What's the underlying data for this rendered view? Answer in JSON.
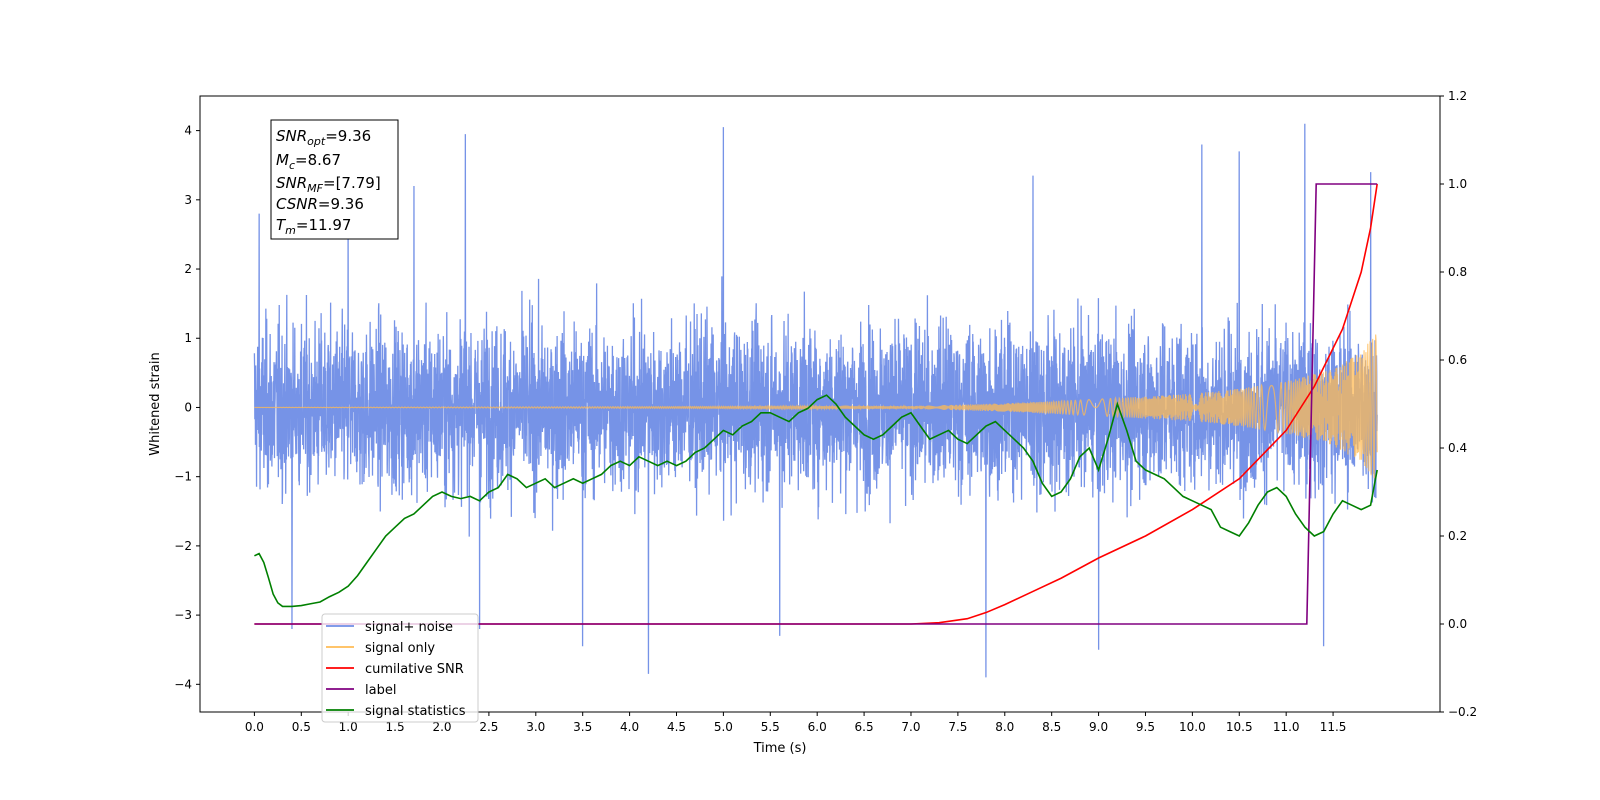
{
  "chart_data": {
    "type": "line",
    "xlabel": "Time (s)",
    "ylabel": "Whitened strain",
    "xlim": [
      -0.58,
      12.64
    ],
    "ylim": [
      -4.4,
      4.5
    ],
    "y2lim": [
      -0.2,
      1.2
    ],
    "xticks": [
      0.0,
      0.5,
      1.0,
      1.5,
      2.0,
      2.5,
      3.0,
      3.5,
      4.0,
      4.5,
      5.0,
      5.5,
      6.0,
      6.5,
      7.0,
      7.5,
      8.0,
      8.5,
      9.0,
      9.5,
      10.0,
      10.5,
      11.0,
      11.5
    ],
    "xtick_labels": [
      "0.0",
      "0.5",
      "1.0",
      "1.5",
      "2.0",
      "2.5",
      "3.0",
      "3.5",
      "4.0",
      "4.5",
      "5.0",
      "5.5",
      "6.0",
      "6.5",
      "7.0",
      "7.5",
      "8.0",
      "8.5",
      "9.0",
      "9.5",
      "10.0",
      "10.5",
      "11.0",
      "11.5"
    ],
    "yticks": [
      -4,
      -3,
      -2,
      -1,
      0,
      1,
      2,
      3,
      4
    ],
    "ytick_labels": [
      "−4",
      "−3",
      "−2",
      "−1",
      "0",
      "1",
      "2",
      "3",
      "4"
    ],
    "y2ticks": [
      -0.2,
      0.0,
      0.2,
      0.4,
      0.6,
      0.8,
      1.0,
      1.2
    ],
    "y2tick_labels": [
      "−0.2",
      "0.0",
      "0.2",
      "0.4",
      "0.6",
      "0.8",
      "1.0",
      "1.2"
    ],
    "legend_position": "lower-left",
    "annotation": {
      "lines": [
        {
          "base": "SNR",
          "sub": "opt",
          "rest": "=9.36"
        },
        {
          "base": "M",
          "sub": "c",
          "rest": "=8.67"
        },
        {
          "base": "SNR",
          "sub": "MF",
          "rest": "=[7.79]"
        },
        {
          "base": "CSNR",
          "sub": "",
          "rest": "=9.36"
        },
        {
          "base": "T",
          "sub": "m",
          "rest": "=11.97"
        }
      ]
    },
    "series": [
      {
        "name": "signal+ noise",
        "axis": "left",
        "color": "#6f8de6",
        "x_range": [
          0.0,
          11.97
        ],
        "noise_sigma": 0.95,
        "peak_values": [
          [
            0.05,
            2.8
          ],
          [
            0.4,
            -3.2
          ],
          [
            1.0,
            2.9
          ],
          [
            1.7,
            3.2
          ],
          [
            2.25,
            3.95
          ],
          [
            2.4,
            -3.2
          ],
          [
            3.5,
            -3.45
          ],
          [
            4.2,
            -3.85
          ],
          [
            5.0,
            4.05
          ],
          [
            5.6,
            -3.3
          ],
          [
            7.8,
            -3.9
          ],
          [
            8.3,
            3.35
          ],
          [
            9.0,
            -3.5
          ],
          [
            10.1,
            3.8
          ],
          [
            10.5,
            3.7
          ],
          [
            11.2,
            4.1
          ],
          [
            11.4,
            -3.45
          ],
          [
            11.9,
            3.4
          ]
        ]
      },
      {
        "name": "signal only",
        "axis": "left",
        "color": "#ffbb55",
        "x_range": [
          0.0,
          11.97
        ],
        "envelope": [
          [
            0.0,
            0.0
          ],
          [
            7.0,
            0.02
          ],
          [
            8.0,
            0.06
          ],
          [
            9.0,
            0.12
          ],
          [
            10.0,
            0.2
          ],
          [
            10.5,
            0.27
          ],
          [
            11.0,
            0.38
          ],
          [
            11.5,
            0.55
          ],
          [
            11.8,
            0.8
          ],
          [
            11.97,
            1.1
          ]
        ]
      },
      {
        "name": "cumilative SNR",
        "axis": "right",
        "color": "#ff0000",
        "x": [
          0.0,
          7.0,
          7.3,
          7.6,
          7.8,
          8.0,
          8.3,
          8.6,
          9.0,
          9.5,
          10.0,
          10.5,
          11.0,
          11.3,
          11.6,
          11.8,
          11.9,
          11.97
        ],
        "values": [
          0.0,
          0.0,
          0.003,
          0.012,
          0.026,
          0.044,
          0.074,
          0.104,
          0.15,
          0.2,
          0.26,
          0.33,
          0.44,
          0.54,
          0.67,
          0.8,
          0.9,
          1.0
        ]
      },
      {
        "name": "label",
        "axis": "right",
        "color": "#800080",
        "x": [
          0.0,
          11.22,
          11.32,
          11.97
        ],
        "values": [
          0.0,
          0.0,
          1.0,
          1.0
        ]
      },
      {
        "name": "signal statistics",
        "axis": "right",
        "color": "#008000",
        "x": [
          0.0,
          0.05,
          0.1,
          0.15,
          0.2,
          0.25,
          0.3,
          0.4,
          0.5,
          0.6,
          0.7,
          0.8,
          0.9,
          1.0,
          1.1,
          1.2,
          1.3,
          1.4,
          1.5,
          1.6,
          1.7,
          1.8,
          1.9,
          2.0,
          2.1,
          2.2,
          2.3,
          2.4,
          2.5,
          2.6,
          2.7,
          2.8,
          2.9,
          3.0,
          3.1,
          3.2,
          3.3,
          3.4,
          3.5,
          3.6,
          3.7,
          3.8,
          3.9,
          4.0,
          4.1,
          4.2,
          4.3,
          4.4,
          4.5,
          4.6,
          4.7,
          4.8,
          4.9,
          5.0,
          5.1,
          5.2,
          5.3,
          5.4,
          5.5,
          5.6,
          5.7,
          5.8,
          5.9,
          6.0,
          6.1,
          6.2,
          6.3,
          6.4,
          6.5,
          6.6,
          6.7,
          6.8,
          6.9,
          7.0,
          7.1,
          7.2,
          7.3,
          7.4,
          7.5,
          7.6,
          7.7,
          7.8,
          7.9,
          8.0,
          8.1,
          8.2,
          8.3,
          8.4,
          8.5,
          8.6,
          8.7,
          8.8,
          8.9,
          9.0,
          9.1,
          9.2,
          9.3,
          9.4,
          9.5,
          9.6,
          9.7,
          9.8,
          9.9,
          10.0,
          10.1,
          10.2,
          10.3,
          10.4,
          10.5,
          10.6,
          10.7,
          10.8,
          10.9,
          11.0,
          11.1,
          11.2,
          11.3,
          11.4,
          11.5,
          11.6,
          11.7,
          11.8,
          11.9,
          11.97
        ],
        "values": [
          0.155,
          0.16,
          0.14,
          0.105,
          0.068,
          0.048,
          0.04,
          0.04,
          0.042,
          0.046,
          0.05,
          0.062,
          0.072,
          0.086,
          0.11,
          0.14,
          0.17,
          0.2,
          0.22,
          0.24,
          0.25,
          0.27,
          0.29,
          0.3,
          0.29,
          0.285,
          0.29,
          0.28,
          0.3,
          0.31,
          0.34,
          0.33,
          0.31,
          0.32,
          0.33,
          0.31,
          0.32,
          0.33,
          0.32,
          0.33,
          0.34,
          0.36,
          0.37,
          0.36,
          0.38,
          0.37,
          0.36,
          0.37,
          0.36,
          0.37,
          0.39,
          0.4,
          0.42,
          0.44,
          0.43,
          0.45,
          0.46,
          0.48,
          0.48,
          0.47,
          0.46,
          0.48,
          0.49,
          0.51,
          0.52,
          0.5,
          0.47,
          0.45,
          0.43,
          0.42,
          0.43,
          0.45,
          0.47,
          0.48,
          0.45,
          0.42,
          0.43,
          0.44,
          0.42,
          0.41,
          0.43,
          0.45,
          0.46,
          0.44,
          0.42,
          0.4,
          0.37,
          0.32,
          0.29,
          0.3,
          0.33,
          0.38,
          0.4,
          0.35,
          0.42,
          0.5,
          0.44,
          0.37,
          0.35,
          0.34,
          0.33,
          0.31,
          0.29,
          0.28,
          0.27,
          0.26,
          0.22,
          0.21,
          0.2,
          0.23,
          0.27,
          0.3,
          0.31,
          0.29,
          0.25,
          0.22,
          0.2,
          0.21,
          0.25,
          0.28,
          0.27,
          0.26,
          0.27,
          0.35
        ]
      }
    ]
  }
}
